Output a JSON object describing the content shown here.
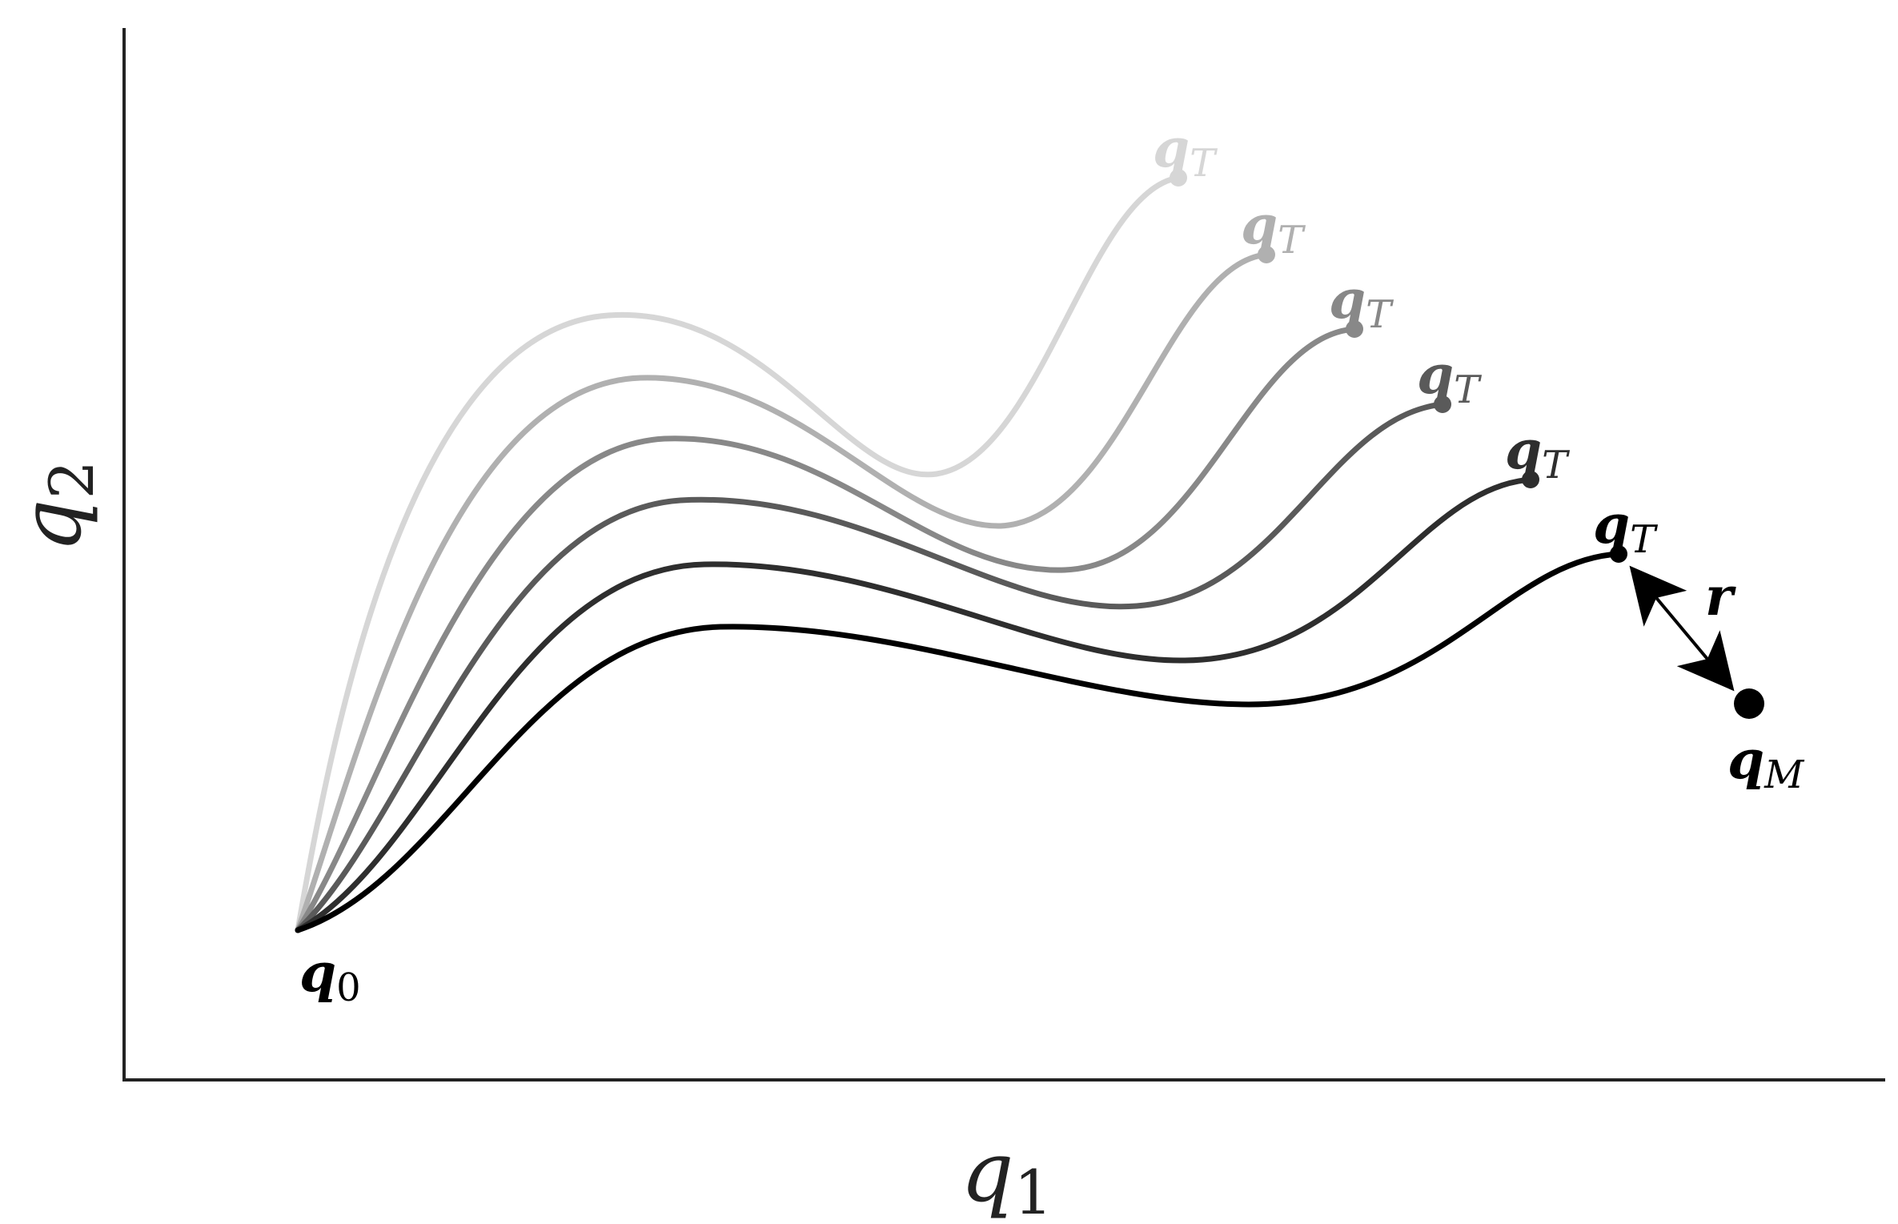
{
  "diagram": {
    "axes": {
      "x_label": {
        "base": "q",
        "sub": "1"
      },
      "y_label": {
        "base": "q",
        "sub": "2"
      }
    },
    "start": {
      "base": "q",
      "sub": "0"
    },
    "measurement": {
      "base": "q",
      "sub": "M"
    },
    "residual": {
      "label": "r"
    },
    "trajectories": [
      {
        "color": "#d6d6d6",
        "end": {
          "base": "q",
          "sub": "T"
        }
      },
      {
        "color": "#b0b0b0",
        "end": {
          "base": "q",
          "sub": "T"
        }
      },
      {
        "color": "#888888",
        "end": {
          "base": "q",
          "sub": "T"
        }
      },
      {
        "color": "#5a5a5a",
        "end": {
          "base": "q",
          "sub": "T"
        }
      },
      {
        "color": "#2e2e2e",
        "end": {
          "base": "q",
          "sub": "T"
        }
      },
      {
        "color": "#000000",
        "end": {
          "base": "q",
          "sub": "T"
        }
      }
    ]
  }
}
